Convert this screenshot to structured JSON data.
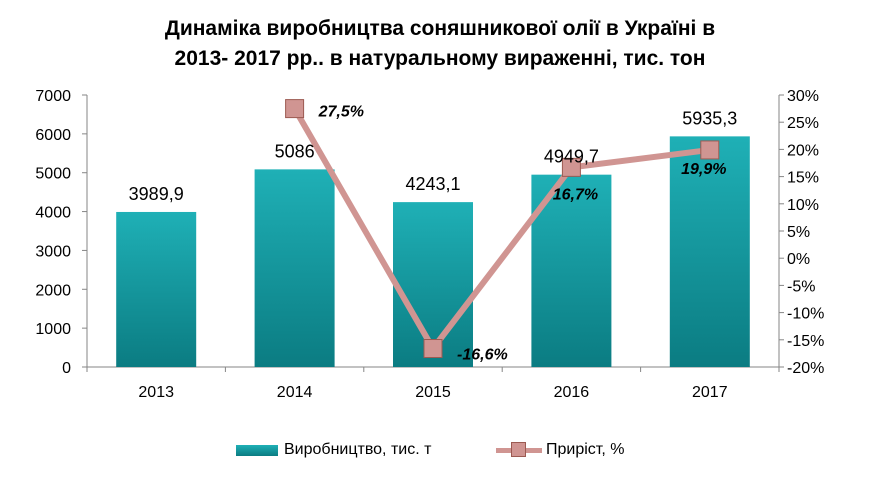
{
  "chart_data": {
    "type": "bar",
    "title_line1": "Динаміка виробництва  соняшникової олії в Україні в",
    "title_line2": "2013- 2017 рр.. в натуральному вираженні, тис. тон",
    "categories": [
      "2013",
      "2014",
      "2015",
      "2016",
      "2017"
    ],
    "series": [
      {
        "name": "Виробництво, тис. т",
        "type": "bar",
        "axis": "left",
        "values": [
          3989.9,
          5086,
          4243.1,
          4949.7,
          5935.3
        ],
        "labels": [
          "3989,9",
          "5086",
          "4243,1",
          "4949,7",
          "5935,3"
        ],
        "color": "#1aa3ab"
      },
      {
        "name": "Приріст, %",
        "type": "line",
        "axis": "right",
        "values": [
          null,
          27.5,
          -16.6,
          16.7,
          19.9
        ],
        "labels": [
          "",
          "27,5%",
          "-16,6%",
          "16,7%",
          "19,9%"
        ],
        "color": "#d09592"
      }
    ],
    "ylim_left": [
      0,
      7000
    ],
    "yticks_left": [
      "0",
      "1000",
      "2000",
      "3000",
      "4000",
      "5000",
      "6000",
      "7000"
    ],
    "ylim_right": [
      -20,
      30
    ],
    "yticks_right": [
      "-20%",
      "-15%",
      "-10%",
      "-5%",
      "0%",
      "5%",
      "10%",
      "15%",
      "20%",
      "25%",
      "30%"
    ],
    "legend_position": "bottom",
    "grid": false
  }
}
